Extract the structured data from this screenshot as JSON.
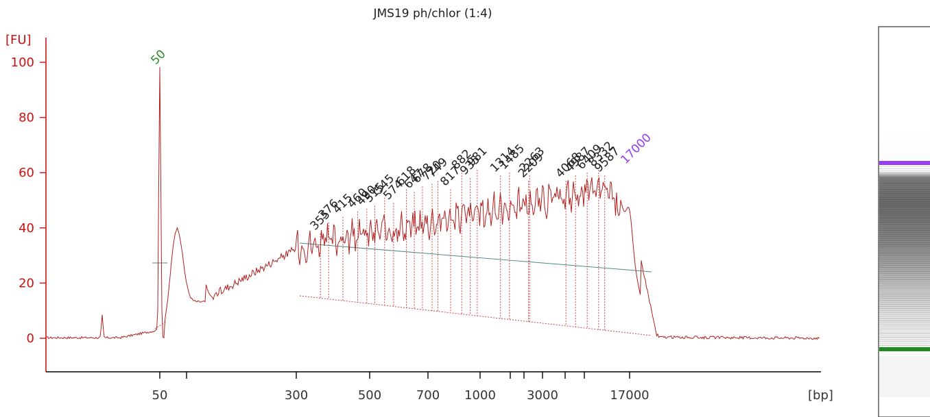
{
  "chart_data": {
    "type": "line",
    "title": "JMS19 ph/chlor (1:4)",
    "y_unit": "[FU]",
    "x_unit": "[bp]",
    "ylim": [
      -12,
      108
    ],
    "y_ticks": [
      0,
      20,
      40,
      60,
      80,
      100
    ],
    "x_ticks": [
      {
        "label": "50",
        "pos": 50
      },
      {
        "label": "",
        "pos": 61
      },
      {
        "label": "300",
        "pos": 300
      },
      {
        "label": "500",
        "pos": 500
      },
      {
        "label": "700",
        "pos": 700
      },
      {
        "label": "1000",
        "pos": 1000
      },
      {
        "label": "",
        "pos": 1500
      },
      {
        "label": "",
        "pos": 2000
      },
      {
        "label": "3000",
        "pos": 3000
      },
      {
        "label": "",
        "pos": 4000
      },
      {
        "label": "",
        "pos": 6000
      },
      {
        "label": "17000",
        "pos": 17000
      }
    ],
    "markers": [
      {
        "label": "50",
        "bp": 50,
        "fu": 98,
        "color": "#2a8a2a"
      },
      {
        "label": "17000",
        "bp": 17000,
        "fu": 62,
        "color": "#9a3cf0"
      }
    ],
    "peaks": [
      {
        "bp": 355,
        "fu": 38
      },
      {
        "bp": 376,
        "fu": 42
      },
      {
        "bp": 415,
        "fu": 44
      },
      {
        "bp": 460,
        "fu": 46
      },
      {
        "bp": 490,
        "fu": 47
      },
      {
        "bp": 515,
        "fu": 48
      },
      {
        "bp": 545,
        "fu": 51
      },
      {
        "bp": 574,
        "fu": 49
      },
      {
        "bp": 618,
        "fu": 54
      },
      {
        "bp": 647,
        "fu": 53
      },
      {
        "bp": 678,
        "fu": 55
      },
      {
        "bp": 720,
        "fu": 56
      },
      {
        "bp": 749,
        "fu": 57
      },
      {
        "bp": 817,
        "fu": 54
      },
      {
        "bp": 882,
        "fu": 60
      },
      {
        "bp": 935,
        "fu": 58
      },
      {
        "bp": 981,
        "fu": 61
      },
      {
        "bp": 1314,
        "fu": 59
      },
      {
        "bp": 1485,
        "fu": 60
      },
      {
        "bp": 2209,
        "fu": 57
      },
      {
        "bp": 2263,
        "fu": 59
      },
      {
        "bp": 4068,
        "fu": 57
      },
      {
        "bp": 4987,
        "fu": 59
      },
      {
        "bp": 6409,
        "fu": 60
      },
      {
        "bp": 8332,
        "fu": 61
      },
      {
        "bp": 9587,
        "fu": 59
      }
    ]
  },
  "gel": {
    "upper_marker_color": "#9a3cf0",
    "lower_marker_color": "#1f8a1f"
  }
}
